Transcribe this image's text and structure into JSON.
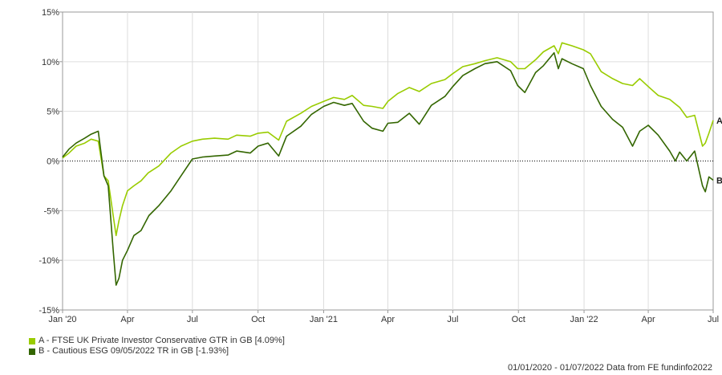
{
  "chart_data": {
    "type": "line",
    "title": "",
    "xlabel": "",
    "ylabel": "",
    "ylim": [
      -15,
      15
    ],
    "yticks": [
      15,
      10,
      5,
      0,
      -5,
      -10,
      -15
    ],
    "ytick_labels": [
      "15%",
      "10%",
      "5%",
      "0%",
      "-5%",
      "-10%",
      "-15%"
    ],
    "xlim": [
      "2020-01-01",
      "2022-07-01"
    ],
    "xticks": [
      "2020-01-01",
      "2020-04-01",
      "2020-07-01",
      "2020-10-01",
      "2021-01-01",
      "2021-04-01",
      "2021-07-01",
      "2021-10-01",
      "2022-01-01",
      "2022-04-01",
      "2022-07-01"
    ],
    "xtick_labels": [
      "Jan '20",
      "Apr",
      "Jul",
      "Oct",
      "Jan '21",
      "Apr",
      "Jul",
      "Oct",
      "Jan '22",
      "Apr",
      "Jul"
    ],
    "grid": true,
    "zero_line": "dotted",
    "series": [
      {
        "name": "A - FTSE UK Private Investor Conservative GTR in GB [4.09%]",
        "end_label": "A",
        "color": "#99cc00",
        "points": [
          [
            "2020-01-01",
            0.3
          ],
          [
            "2020-01-10",
            0.8
          ],
          [
            "2020-01-20",
            1.5
          ],
          [
            "2020-02-01",
            1.8
          ],
          [
            "2020-02-10",
            2.2
          ],
          [
            "2020-02-20",
            2.0
          ],
          [
            "2020-02-28",
            -1.5
          ],
          [
            "2020-03-05",
            -2.0
          ],
          [
            "2020-03-12",
            -5.5
          ],
          [
            "2020-03-16",
            -7.5
          ],
          [
            "2020-03-20",
            -6.0
          ],
          [
            "2020-03-25",
            -4.5
          ],
          [
            "2020-04-01",
            -3.0
          ],
          [
            "2020-04-10",
            -2.5
          ],
          [
            "2020-04-20",
            -2.0
          ],
          [
            "2020-04-30",
            -1.2
          ],
          [
            "2020-05-15",
            -0.5
          ],
          [
            "2020-06-01",
            0.8
          ],
          [
            "2020-06-15",
            1.5
          ],
          [
            "2020-07-01",
            2.0
          ],
          [
            "2020-07-15",
            2.2
          ],
          [
            "2020-08-01",
            2.3
          ],
          [
            "2020-08-20",
            2.2
          ],
          [
            "2020-09-01",
            2.6
          ],
          [
            "2020-09-20",
            2.5
          ],
          [
            "2020-10-01",
            2.8
          ],
          [
            "2020-10-15",
            2.9
          ],
          [
            "2020-10-30",
            2.1
          ],
          [
            "2020-11-10",
            4.0
          ],
          [
            "2020-11-30",
            4.8
          ],
          [
            "2020-12-15",
            5.5
          ],
          [
            "2021-01-01",
            6.0
          ],
          [
            "2021-01-15",
            6.4
          ],
          [
            "2021-01-30",
            6.2
          ],
          [
            "2021-02-10",
            6.6
          ],
          [
            "2021-02-26",
            5.6
          ],
          [
            "2021-03-10",
            5.5
          ],
          [
            "2021-03-25",
            5.3
          ],
          [
            "2021-04-01",
            6.0
          ],
          [
            "2021-04-15",
            6.8
          ],
          [
            "2021-05-01",
            7.4
          ],
          [
            "2021-05-15",
            7.0
          ],
          [
            "2021-06-01",
            7.8
          ],
          [
            "2021-06-20",
            8.2
          ],
          [
            "2021-07-01",
            8.8
          ],
          [
            "2021-07-15",
            9.5
          ],
          [
            "2021-08-01",
            9.8
          ],
          [
            "2021-08-15",
            10.1
          ],
          [
            "2021-09-01",
            10.4
          ],
          [
            "2021-09-20",
            10.0
          ],
          [
            "2021-09-30",
            9.3
          ],
          [
            "2021-10-10",
            9.3
          ],
          [
            "2021-10-25",
            10.2
          ],
          [
            "2021-11-05",
            11.0
          ],
          [
            "2021-11-20",
            11.6
          ],
          [
            "2021-11-26",
            10.8
          ],
          [
            "2021-12-01",
            11.9
          ],
          [
            "2021-12-15",
            11.6
          ],
          [
            "2021-12-31",
            11.2
          ],
          [
            "2022-01-10",
            10.8
          ],
          [
            "2022-01-25",
            9.0
          ],
          [
            "2022-02-10",
            8.3
          ],
          [
            "2022-02-24",
            7.8
          ],
          [
            "2022-03-10",
            7.6
          ],
          [
            "2022-03-20",
            8.3
          ],
          [
            "2022-04-01",
            7.5
          ],
          [
            "2022-04-15",
            6.6
          ],
          [
            "2022-05-01",
            6.2
          ],
          [
            "2022-05-15",
            5.4
          ],
          [
            "2022-05-25",
            4.4
          ],
          [
            "2022-06-05",
            4.6
          ],
          [
            "2022-06-16",
            1.5
          ],
          [
            "2022-06-20",
            1.8
          ],
          [
            "2022-06-25",
            2.8
          ],
          [
            "2022-07-01",
            4.09
          ]
        ]
      },
      {
        "name": "B - Cautious ESG 09/05/2022 TR in GB [-1.93%]",
        "end_label": "B",
        "color": "#336600",
        "points": [
          [
            "2020-01-01",
            0.4
          ],
          [
            "2020-01-10",
            1.2
          ],
          [
            "2020-01-20",
            1.8
          ],
          [
            "2020-02-01",
            2.3
          ],
          [
            "2020-02-10",
            2.7
          ],
          [
            "2020-02-20",
            3.0
          ],
          [
            "2020-02-28",
            -1.5
          ],
          [
            "2020-03-05",
            -2.5
          ],
          [
            "2020-03-12",
            -9.0
          ],
          [
            "2020-03-16",
            -12.5
          ],
          [
            "2020-03-20",
            -11.8
          ],
          [
            "2020-03-25",
            -10.0
          ],
          [
            "2020-04-01",
            -9.0
          ],
          [
            "2020-04-10",
            -7.5
          ],
          [
            "2020-04-20",
            -7.0
          ],
          [
            "2020-05-01",
            -5.5
          ],
          [
            "2020-05-15",
            -4.5
          ],
          [
            "2020-06-01",
            -3.0
          ],
          [
            "2020-06-15",
            -1.5
          ],
          [
            "2020-07-01",
            0.2
          ],
          [
            "2020-07-15",
            0.4
          ],
          [
            "2020-08-01",
            0.5
          ],
          [
            "2020-08-20",
            0.6
          ],
          [
            "2020-09-01",
            1.0
          ],
          [
            "2020-09-20",
            0.8
          ],
          [
            "2020-10-01",
            1.5
          ],
          [
            "2020-10-15",
            1.8
          ],
          [
            "2020-10-30",
            0.5
          ],
          [
            "2020-11-10",
            2.5
          ],
          [
            "2020-11-30",
            3.5
          ],
          [
            "2020-12-15",
            4.7
          ],
          [
            "2021-01-01",
            5.5
          ],
          [
            "2021-01-15",
            5.9
          ],
          [
            "2021-01-30",
            5.6
          ],
          [
            "2021-02-10",
            5.8
          ],
          [
            "2021-02-26",
            4.0
          ],
          [
            "2021-03-10",
            3.3
          ],
          [
            "2021-03-25",
            3.0
          ],
          [
            "2021-04-01",
            3.8
          ],
          [
            "2021-04-15",
            3.9
          ],
          [
            "2021-05-01",
            4.8
          ],
          [
            "2021-05-15",
            3.7
          ],
          [
            "2021-06-01",
            5.6
          ],
          [
            "2021-06-20",
            6.5
          ],
          [
            "2021-07-01",
            7.5
          ],
          [
            "2021-07-15",
            8.6
          ],
          [
            "2021-08-01",
            9.3
          ],
          [
            "2021-08-15",
            9.8
          ],
          [
            "2021-09-01",
            10.0
          ],
          [
            "2021-09-20",
            9.1
          ],
          [
            "2021-09-30",
            7.6
          ],
          [
            "2021-10-10",
            6.9
          ],
          [
            "2021-10-25",
            8.9
          ],
          [
            "2021-11-05",
            9.6
          ],
          [
            "2021-11-20",
            10.9
          ],
          [
            "2021-11-26",
            9.3
          ],
          [
            "2021-12-01",
            10.3
          ],
          [
            "2021-12-15",
            9.8
          ],
          [
            "2021-12-31",
            9.3
          ],
          [
            "2022-01-10",
            7.6
          ],
          [
            "2022-01-25",
            5.5
          ],
          [
            "2022-02-10",
            4.2
          ],
          [
            "2022-02-24",
            3.4
          ],
          [
            "2022-03-10",
            1.5
          ],
          [
            "2022-03-20",
            3.0
          ],
          [
            "2022-04-01",
            3.6
          ],
          [
            "2022-04-15",
            2.6
          ],
          [
            "2022-05-01",
            1.0
          ],
          [
            "2022-05-09",
            0.0
          ],
          [
            "2022-05-15",
            0.9
          ],
          [
            "2022-05-25",
            0.0
          ],
          [
            "2022-06-05",
            1.0
          ],
          [
            "2022-06-16",
            -2.5
          ],
          [
            "2022-06-20",
            -3.1
          ],
          [
            "2022-06-25",
            -1.6
          ],
          [
            "2022-07-01",
            -1.93
          ]
        ]
      }
    ]
  },
  "footer_text": "01/01/2020 - 01/07/2022 Data from FE fundinfo2022"
}
